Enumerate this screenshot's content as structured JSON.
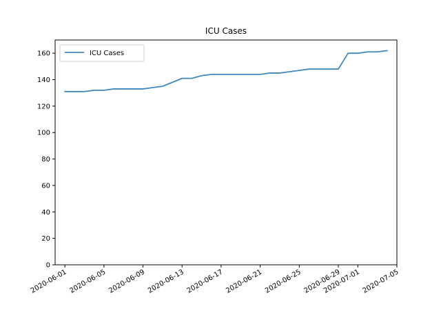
{
  "chart_data": {
    "type": "line",
    "title": "ICU Cases",
    "xlabel": "",
    "ylabel": "",
    "x_type": "date",
    "xlim": [
      "2020-05-31",
      "2020-07-05"
    ],
    "ylim": [
      0,
      170
    ],
    "x_ticks": [
      "2020-06-01",
      "2020-06-05",
      "2020-06-09",
      "2020-06-13",
      "2020-06-17",
      "2020-06-21",
      "2020-06-25",
      "2020-06-29",
      "2020-07-01",
      "2020-07-05"
    ],
    "y_ticks": [
      0,
      20,
      40,
      60,
      80,
      100,
      120,
      140,
      160
    ],
    "legend": {
      "position": "top-left",
      "entries": [
        "ICU Cases"
      ]
    },
    "grid": false,
    "colors": {
      "series": "#3f88bd"
    },
    "series": [
      {
        "name": "ICU Cases",
        "x": [
          "2020-06-01",
          "2020-06-02",
          "2020-06-03",
          "2020-06-04",
          "2020-06-05",
          "2020-06-06",
          "2020-06-07",
          "2020-06-08",
          "2020-06-09",
          "2020-06-10",
          "2020-06-11",
          "2020-06-12",
          "2020-06-13",
          "2020-06-14",
          "2020-06-15",
          "2020-06-16",
          "2020-06-17",
          "2020-06-18",
          "2020-06-19",
          "2020-06-20",
          "2020-06-21",
          "2020-06-22",
          "2020-06-23",
          "2020-06-24",
          "2020-06-25",
          "2020-06-26",
          "2020-06-27",
          "2020-06-28",
          "2020-06-29",
          "2020-06-30",
          "2020-07-01",
          "2020-07-02",
          "2020-07-03",
          "2020-07-04"
        ],
        "values": [
          131,
          131,
          131,
          132,
          132,
          133,
          133,
          133,
          133,
          134,
          135,
          138,
          141,
          141,
          143,
          144,
          144,
          144,
          144,
          144,
          144,
          145,
          145,
          146,
          147,
          148,
          148,
          148,
          148,
          160,
          160,
          161,
          161,
          162
        ]
      }
    ]
  }
}
